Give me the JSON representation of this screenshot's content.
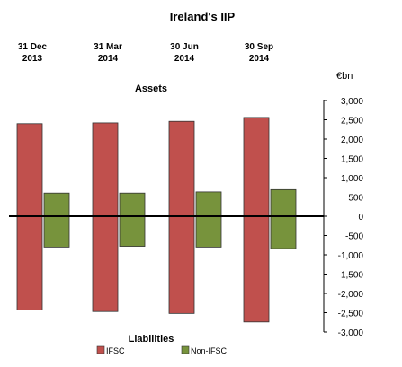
{
  "chart_data": {
    "type": "bar",
    "title": "Ireland's IIP",
    "unit_label": "€bn",
    "top_label": "Assets",
    "bottom_label": "Liabilities",
    "categories": [
      {
        "line1": "31 Dec",
        "line2": "2013"
      },
      {
        "line1": "31 Mar",
        "line2": "2014"
      },
      {
        "line1": "30 Jun",
        "line2": "2014"
      },
      {
        "line1": "30 Sep",
        "line2": "2014"
      }
    ],
    "series": [
      {
        "name": "IFSC",
        "color": "#c0504d",
        "assets": [
          2400,
          2420,
          2460,
          2560
        ],
        "liabilities": [
          -2430,
          -2470,
          -2520,
          -2740
        ]
      },
      {
        "name": "Non-IFSC",
        "color": "#77933c",
        "assets": [
          600,
          600,
          630,
          690
        ],
        "liabilities": [
          -800,
          -780,
          -800,
          -840
        ]
      }
    ],
    "ylim": [
      -3000,
      3000
    ],
    "yticks": [
      3000,
      2500,
      2000,
      1500,
      1000,
      500,
      0,
      -500,
      -1000,
      -1500,
      -2000,
      -2500,
      -3000
    ],
    "ytick_labels": [
      "3,000",
      "2,500",
      "2,000",
      "1,500",
      "1,000",
      "500",
      "0",
      "-500",
      "-1,000",
      "-1,500",
      "-2,000",
      "-2,500",
      "-3,000"
    ],
    "legend_position": "bottom-left",
    "grid": false
  }
}
